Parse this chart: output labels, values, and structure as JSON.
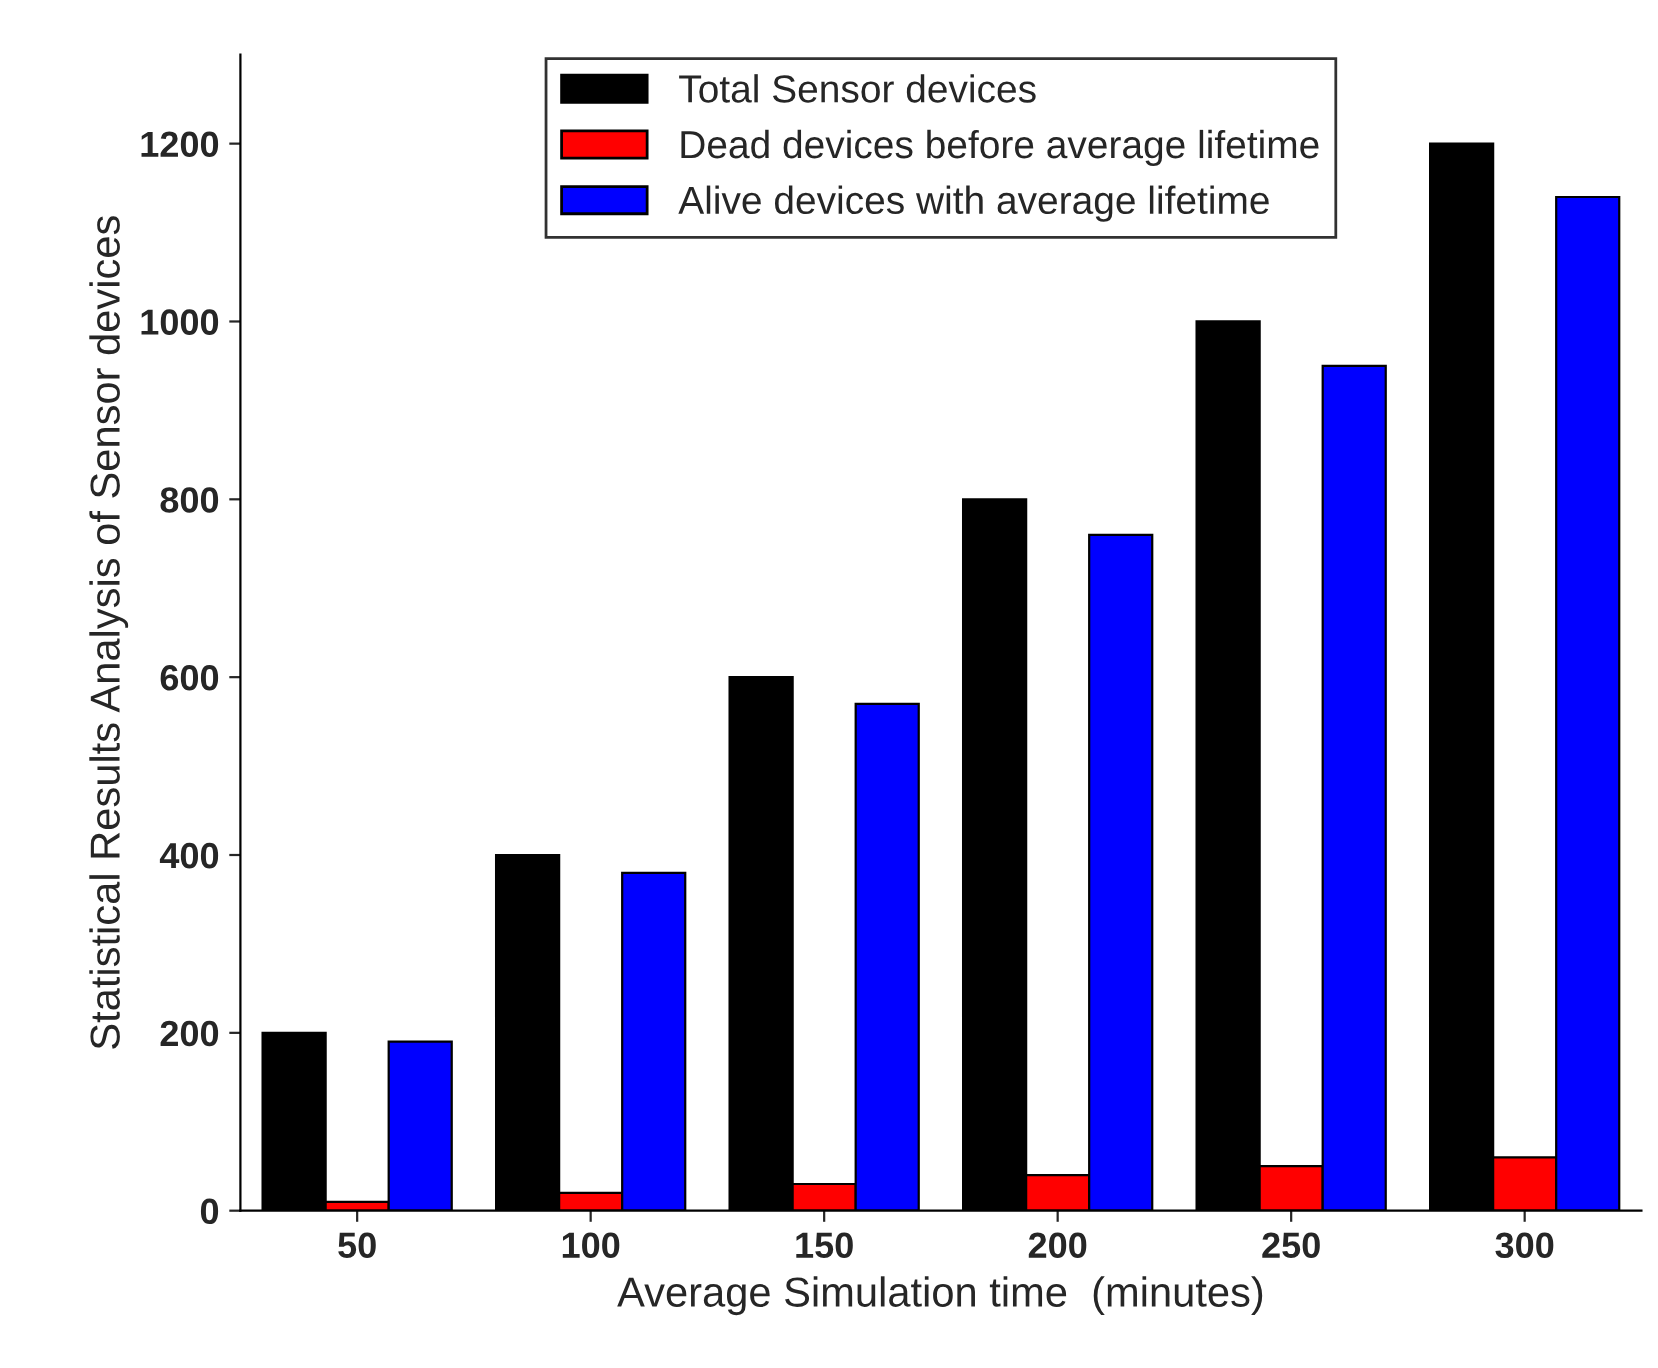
{
  "chart_data": {
    "type": "bar",
    "xlabel": "Average Simulation time  (minutes)",
    "ylabel": "Statistical Results Analysis of Sensor devices",
    "categories": [
      "50",
      "100",
      "150",
      "200",
      "250",
      "300"
    ],
    "series": [
      {
        "name": "Total Sensor devices",
        "color": "#000000",
        "values": [
          200,
          400,
          600,
          800,
          1000,
          1200
        ]
      },
      {
        "name": "Dead devices before average lifetime",
        "color": "#ff0000",
        "values": [
          10,
          20,
          30,
          40,
          50,
          60
        ]
      },
      {
        "name": "Alive devices with average lifetime",
        "color": "#0000ff",
        "values": [
          190,
          380,
          570,
          760,
          950,
          1140
        ]
      }
    ],
    "ylim": [
      0,
      1300
    ],
    "yticks": [
      0,
      200,
      400,
      600,
      800,
      1000,
      1200
    ],
    "grid": false,
    "legend": "top"
  }
}
